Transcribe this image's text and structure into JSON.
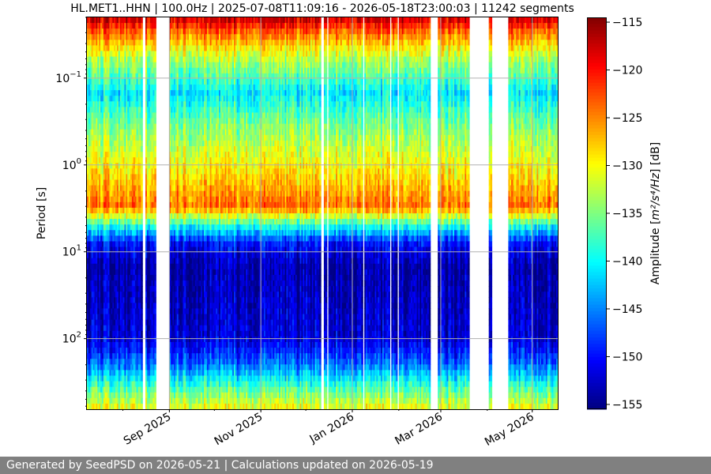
{
  "chart_data": {
    "type": "heatmap",
    "title": "HL.MET1..HHN | 100.0Hz | 2025-07-08T11:09:16 - 2026-05-18T23:00:03 | 11242 segments",
    "xlabel": "",
    "ylabel": "Period [s]",
    "x_range": [
      "2025-07-08",
      "2026-05-18"
    ],
    "x_ticks": [
      {
        "date": "2025-09-01",
        "label": "Sep 2025"
      },
      {
        "date": "2025-11-01",
        "label": "Nov 2025"
      },
      {
        "date": "2026-01-01",
        "label": "Jan 2026"
      },
      {
        "date": "2026-03-01",
        "label": "Mar 2026"
      },
      {
        "date": "2026-05-01",
        "label": "May 2026"
      }
    ],
    "y_scale": "log",
    "y_inverted": true,
    "y_range": [
      0.02,
      650
    ],
    "y_ticks": [
      {
        "value": 0.1,
        "base": "10",
        "exp": "−1"
      },
      {
        "value": 1,
        "base": "10",
        "exp": "0"
      },
      {
        "value": 10,
        "base": "10",
        "exp": "1"
      },
      {
        "value": 100,
        "base": "10",
        "exp": "2"
      }
    ],
    "grid": true,
    "colorbar": {
      "label_prefix": "Amplitude [",
      "label_unit": "m²/s⁴/Hz",
      "label_suffix": "] [dB]",
      "range": [
        -155.5,
        -114.5
      ],
      "colormap": "jet",
      "ticks": [
        -115,
        -120,
        -125,
        -130,
        -135,
        -140,
        -145,
        -150,
        -155
      ],
      "tick_labels": [
        "−115",
        "−120",
        "−125",
        "−130",
        "−135",
        "−140",
        "−145",
        "−150",
        "−155"
      ]
    },
    "data_gaps": [
      [
        "2025-08-14",
        "2025-08-16"
      ],
      [
        "2025-08-23",
        "2025-09-01"
      ],
      [
        "2025-12-11",
        "2025-12-13"
      ],
      [
        "2025-12-15",
        "2025-12-16"
      ],
      [
        "2026-01-08",
        "2026-01-09"
      ],
      [
        "2026-01-26",
        "2026-01-27"
      ],
      [
        "2026-01-31",
        "2026-02-01"
      ],
      [
        "2026-02-22",
        "2026-02-27"
      ],
      [
        "2026-03-20",
        "2026-04-02"
      ],
      [
        "2026-04-04",
        "2026-04-15"
      ]
    ],
    "spectral_profile": [
      {
        "period": 0.02,
        "db": -117
      },
      {
        "period": 0.03,
        "db": -124
      },
      {
        "period": 0.06,
        "db": -133
      },
      {
        "period": 0.15,
        "db": -141
      },
      {
        "period": 0.3,
        "db": -136
      },
      {
        "period": 1.5,
        "db": -128
      },
      {
        "period": 3,
        "db": -124
      },
      {
        "period": 5,
        "db": -139
      },
      {
        "period": 8,
        "db": -150
      },
      {
        "period": 15,
        "db": -154
      },
      {
        "period": 100,
        "db": -152
      },
      {
        "period": 200,
        "db": -146
      },
      {
        "period": 400,
        "db": -136
      },
      {
        "period": 650,
        "db": -130
      }
    ]
  },
  "footer": {
    "text": "Generated by SeedPSD on 2026-05-21 | Calculations updated on 2026-05-19"
  }
}
